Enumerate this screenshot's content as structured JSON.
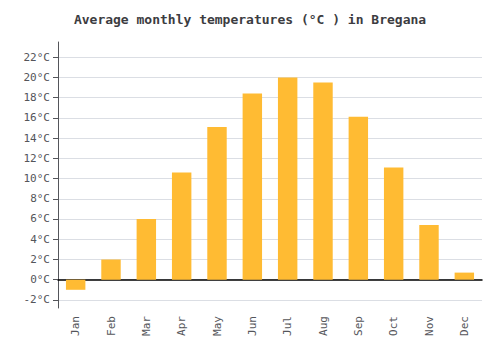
{
  "chart_data": {
    "type": "bar",
    "title": "Average monthly temperatures (°C ) in Bregana",
    "categories": [
      "Jan",
      "Feb",
      "Mar",
      "Apr",
      "May",
      "Jun",
      "Jul",
      "Aug",
      "Sep",
      "Oct",
      "Nov",
      "Dec"
    ],
    "values": [
      -1.0,
      2.0,
      6.0,
      10.6,
      15.1,
      18.4,
      20.0,
      19.5,
      16.1,
      11.1,
      5.4,
      0.7
    ],
    "color": "#FFBB33",
    "ylim": [
      -2.8,
      23.5
    ],
    "yticks": [
      {
        "value": -2,
        "label": "-2°C"
      },
      {
        "value": 0,
        "label": "0°C"
      },
      {
        "value": 2,
        "label": "2°C"
      },
      {
        "value": 4,
        "label": "4°C"
      },
      {
        "value": 6,
        "label": "6°C"
      },
      {
        "value": 8,
        "label": "8°C"
      },
      {
        "value": 10,
        "label": "10°C"
      },
      {
        "value": 12,
        "label": "12°C"
      },
      {
        "value": 14,
        "label": "14°C"
      },
      {
        "value": 16,
        "label": "16°C"
      },
      {
        "value": 18,
        "label": "18°C"
      },
      {
        "value": 20,
        "label": "20°C"
      },
      {
        "value": 22,
        "label": "22°C"
      }
    ],
    "grid": true
  }
}
